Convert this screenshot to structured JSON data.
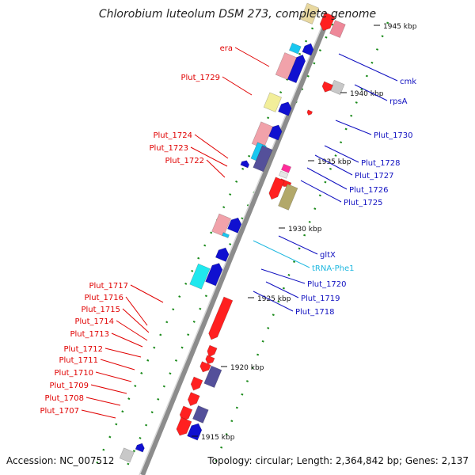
{
  "title": "Chlorobium luteolum DSM 273, complete genome",
  "accession": "Accession: NC_007512",
  "topology": "Topology: circular; Length: 2,364,842 bp; Genes: 2,137",
  "colors": {
    "forward_label": "#e00000",
    "reverse_label": "#1010c0",
    "rna_label": "#20b8e0",
    "backbone": "#8c8c8c",
    "tick": "#1a8a1a"
  },
  "scale_labels": [
    "1945 kbp",
    "1940 kbp",
    "1935 kbp",
    "1930 kbp",
    "1925 kbp",
    "1920 kbp",
    "1915 kbp"
  ],
  "left_labels": [
    "era",
    "Plut_1729",
    "Plut_1724",
    "Plut_1723",
    "Plut_1722",
    "Plut_1717",
    "Plut_1716",
    "Plut_1715",
    "Plut_1714",
    "Plut_1713",
    "Plut_1712",
    "Plut_1711",
    "Plut_1710",
    "Plut_1709",
    "Plut_1708",
    "Plut_1707"
  ],
  "right_labels": [
    "cmk",
    "rpsA",
    "Plut_1730",
    "Plut_1728",
    "Plut_1727",
    "Plut_1726",
    "Plut_1725",
    "gltX",
    "tRNA-Phe1",
    "Plut_1720",
    "Plut_1719",
    "Plut_1718"
  ]
}
